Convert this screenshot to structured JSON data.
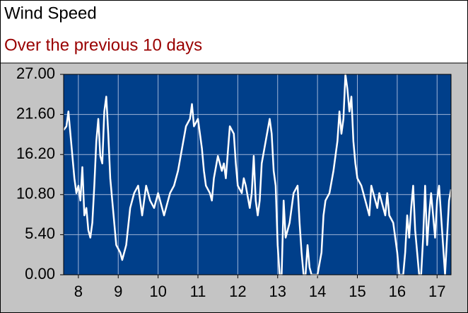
{
  "chart_data": {
    "type": "line",
    "title": "Wind Speed",
    "subtitle": "Over the previous 10 days",
    "x": [
      7.63,
      7.7,
      7.75,
      7.8,
      7.85,
      7.9,
      7.95,
      8.0,
      8.05,
      8.1,
      8.15,
      8.2,
      8.25,
      8.3,
      8.35,
      8.4,
      8.45,
      8.5,
      8.55,
      8.6,
      8.65,
      8.7,
      8.75,
      8.8,
      8.85,
      8.9,
      8.95,
      9.0,
      9.05,
      9.1,
      9.15,
      9.2,
      9.3,
      9.4,
      9.5,
      9.55,
      9.6,
      9.7,
      9.8,
      9.9,
      10.0,
      10.1,
      10.15,
      10.2,
      10.3,
      10.4,
      10.5,
      10.6,
      10.7,
      10.8,
      10.85,
      10.9,
      11.0,
      11.05,
      11.1,
      11.15,
      11.2,
      11.3,
      11.35,
      11.4,
      11.5,
      11.6,
      11.65,
      11.7,
      11.8,
      11.9,
      11.95,
      12.0,
      12.1,
      12.15,
      12.2,
      12.3,
      12.35,
      12.4,
      12.45,
      12.5,
      12.55,
      12.6,
      12.7,
      12.8,
      12.85,
      12.9,
      12.95,
      13.0,
      13.05,
      13.1,
      13.15,
      13.2,
      13.3,
      13.4,
      13.5,
      13.55,
      13.6,
      13.65,
      13.7,
      13.75,
      13.8,
      13.85,
      13.9,
      14.0,
      14.1,
      14.15,
      14.2,
      14.3,
      14.4,
      14.5,
      14.55,
      14.6,
      14.65,
      14.7,
      14.75,
      14.8,
      14.85,
      14.9,
      14.95,
      15.0,
      15.1,
      15.2,
      15.3,
      15.35,
      15.4,
      15.5,
      15.55,
      15.6,
      15.7,
      15.75,
      15.8,
      15.9,
      15.95,
      16.0,
      16.05,
      16.1,
      16.15,
      16.2,
      16.25,
      16.3,
      16.35,
      16.4,
      16.45,
      16.5,
      16.55,
      16.6,
      16.65,
      16.7,
      16.75,
      16.8,
      16.85,
      16.9,
      16.95,
      17.0,
      17.05,
      17.1,
      17.15,
      17.2,
      17.25,
      17.3,
      17.35
    ],
    "series": [
      {
        "color": "#ffffff",
        "values": [
          19.5,
          20,
          22,
          19,
          16,
          13,
          11,
          12,
          10,
          14.5,
          8,
          9,
          6,
          5,
          7,
          12,
          18,
          21,
          16,
          15,
          22,
          24,
          19,
          13,
          10,
          7,
          4,
          3.5,
          3,
          2,
          3,
          4,
          9,
          11,
          12,
          10,
          8,
          12,
          10,
          9,
          11,
          9,
          8,
          9,
          11,
          12,
          14,
          17,
          20,
          21,
          23,
          20,
          21,
          19,
          17,
          14,
          12,
          11,
          10,
          13,
          16,
          14,
          15,
          13,
          20,
          19,
          15,
          12,
          11,
          13,
          12,
          9,
          11,
          16,
          10,
          8,
          10,
          15,
          18,
          21,
          19,
          14,
          12,
          4,
          0,
          0,
          10,
          5,
          7,
          11,
          12,
          7,
          3,
          0,
          0,
          4,
          1,
          0,
          0,
          0,
          3,
          8,
          10,
          11,
          14,
          18,
          22,
          19,
          21,
          27,
          25,
          22,
          24,
          18,
          15,
          13,
          12,
          10,
          8,
          12,
          11,
          9,
          11,
          10,
          8,
          11,
          8,
          7,
          5,
          3,
          0,
          0,
          0,
          3,
          8,
          5,
          9,
          12,
          6,
          3,
          0,
          0,
          5,
          12,
          4,
          8,
          11,
          8,
          5,
          10,
          12,
          8,
          4,
          0,
          5,
          10,
          11.5
        ]
      }
    ],
    "xlim": [
      7.63,
      17.35
    ],
    "xticks": [
      8,
      9,
      10,
      11,
      12,
      13,
      14,
      15,
      16,
      17
    ],
    "ylim": [
      0,
      27
    ],
    "yticks": [
      {
        "value": 0,
        "label": "0.00"
      },
      {
        "value": 5.4,
        "label": "5.40"
      },
      {
        "value": 10.8,
        "label": "10.80"
      },
      {
        "value": 16.2,
        "label": "16.20"
      },
      {
        "value": 21.6,
        "label": "21.60"
      },
      {
        "value": 27,
        "label": "27.00"
      }
    ],
    "grid": true,
    "background": "#003f8a",
    "grid_color": "#9fb4d8"
  }
}
